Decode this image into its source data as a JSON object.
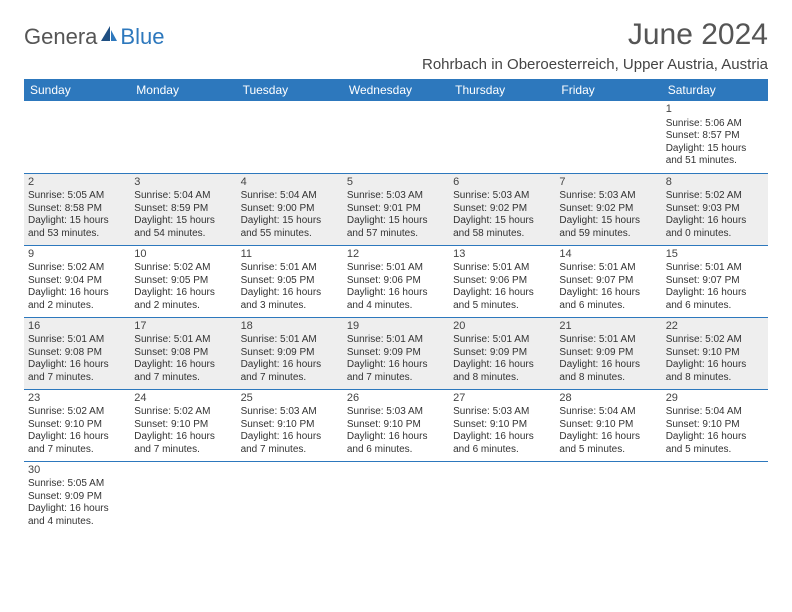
{
  "logo": {
    "part1": "Genera",
    "part2": "Blue"
  },
  "title": "June 2024",
  "subtitle": "Rohrbach in Oberoesterreich, Upper Austria, Austria",
  "colors": {
    "header_bg": "#2d78bd",
    "header_text": "#ffffff",
    "row_shade": "#eeeeee",
    "row_plain": "#ffffff",
    "border": "#2d78bd",
    "title_color": "#555555"
  },
  "day_headers": [
    "Sunday",
    "Monday",
    "Tuesday",
    "Wednesday",
    "Thursday",
    "Friday",
    "Saturday"
  ],
  "weeks": [
    [
      null,
      null,
      null,
      null,
      null,
      null,
      {
        "n": "1",
        "sunrise": "Sunrise: 5:06 AM",
        "sunset": "Sunset: 8:57 PM",
        "daylight": "Daylight: 15 hours and 51 minutes."
      }
    ],
    [
      {
        "n": "2",
        "sunrise": "Sunrise: 5:05 AM",
        "sunset": "Sunset: 8:58 PM",
        "daylight": "Daylight: 15 hours and 53 minutes."
      },
      {
        "n": "3",
        "sunrise": "Sunrise: 5:04 AM",
        "sunset": "Sunset: 8:59 PM",
        "daylight": "Daylight: 15 hours and 54 minutes."
      },
      {
        "n": "4",
        "sunrise": "Sunrise: 5:04 AM",
        "sunset": "Sunset: 9:00 PM",
        "daylight": "Daylight: 15 hours and 55 minutes."
      },
      {
        "n": "5",
        "sunrise": "Sunrise: 5:03 AM",
        "sunset": "Sunset: 9:01 PM",
        "daylight": "Daylight: 15 hours and 57 minutes."
      },
      {
        "n": "6",
        "sunrise": "Sunrise: 5:03 AM",
        "sunset": "Sunset: 9:02 PM",
        "daylight": "Daylight: 15 hours and 58 minutes."
      },
      {
        "n": "7",
        "sunrise": "Sunrise: 5:03 AM",
        "sunset": "Sunset: 9:02 PM",
        "daylight": "Daylight: 15 hours and 59 minutes."
      },
      {
        "n": "8",
        "sunrise": "Sunrise: 5:02 AM",
        "sunset": "Sunset: 9:03 PM",
        "daylight": "Daylight: 16 hours and 0 minutes."
      }
    ],
    [
      {
        "n": "9",
        "sunrise": "Sunrise: 5:02 AM",
        "sunset": "Sunset: 9:04 PM",
        "daylight": "Daylight: 16 hours and 2 minutes."
      },
      {
        "n": "10",
        "sunrise": "Sunrise: 5:02 AM",
        "sunset": "Sunset: 9:05 PM",
        "daylight": "Daylight: 16 hours and 2 minutes."
      },
      {
        "n": "11",
        "sunrise": "Sunrise: 5:01 AM",
        "sunset": "Sunset: 9:05 PM",
        "daylight": "Daylight: 16 hours and 3 minutes."
      },
      {
        "n": "12",
        "sunrise": "Sunrise: 5:01 AM",
        "sunset": "Sunset: 9:06 PM",
        "daylight": "Daylight: 16 hours and 4 minutes."
      },
      {
        "n": "13",
        "sunrise": "Sunrise: 5:01 AM",
        "sunset": "Sunset: 9:06 PM",
        "daylight": "Daylight: 16 hours and 5 minutes."
      },
      {
        "n": "14",
        "sunrise": "Sunrise: 5:01 AM",
        "sunset": "Sunset: 9:07 PM",
        "daylight": "Daylight: 16 hours and 6 minutes."
      },
      {
        "n": "15",
        "sunrise": "Sunrise: 5:01 AM",
        "sunset": "Sunset: 9:07 PM",
        "daylight": "Daylight: 16 hours and 6 minutes."
      }
    ],
    [
      {
        "n": "16",
        "sunrise": "Sunrise: 5:01 AM",
        "sunset": "Sunset: 9:08 PM",
        "daylight": "Daylight: 16 hours and 7 minutes."
      },
      {
        "n": "17",
        "sunrise": "Sunrise: 5:01 AM",
        "sunset": "Sunset: 9:08 PM",
        "daylight": "Daylight: 16 hours and 7 minutes."
      },
      {
        "n": "18",
        "sunrise": "Sunrise: 5:01 AM",
        "sunset": "Sunset: 9:09 PM",
        "daylight": "Daylight: 16 hours and 7 minutes."
      },
      {
        "n": "19",
        "sunrise": "Sunrise: 5:01 AM",
        "sunset": "Sunset: 9:09 PM",
        "daylight": "Daylight: 16 hours and 7 minutes."
      },
      {
        "n": "20",
        "sunrise": "Sunrise: 5:01 AM",
        "sunset": "Sunset: 9:09 PM",
        "daylight": "Daylight: 16 hours and 8 minutes."
      },
      {
        "n": "21",
        "sunrise": "Sunrise: 5:01 AM",
        "sunset": "Sunset: 9:09 PM",
        "daylight": "Daylight: 16 hours and 8 minutes."
      },
      {
        "n": "22",
        "sunrise": "Sunrise: 5:02 AM",
        "sunset": "Sunset: 9:10 PM",
        "daylight": "Daylight: 16 hours and 8 minutes."
      }
    ],
    [
      {
        "n": "23",
        "sunrise": "Sunrise: 5:02 AM",
        "sunset": "Sunset: 9:10 PM",
        "daylight": "Daylight: 16 hours and 7 minutes."
      },
      {
        "n": "24",
        "sunrise": "Sunrise: 5:02 AM",
        "sunset": "Sunset: 9:10 PM",
        "daylight": "Daylight: 16 hours and 7 minutes."
      },
      {
        "n": "25",
        "sunrise": "Sunrise: 5:03 AM",
        "sunset": "Sunset: 9:10 PM",
        "daylight": "Daylight: 16 hours and 7 minutes."
      },
      {
        "n": "26",
        "sunrise": "Sunrise: 5:03 AM",
        "sunset": "Sunset: 9:10 PM",
        "daylight": "Daylight: 16 hours and 6 minutes."
      },
      {
        "n": "27",
        "sunrise": "Sunrise: 5:03 AM",
        "sunset": "Sunset: 9:10 PM",
        "daylight": "Daylight: 16 hours and 6 minutes."
      },
      {
        "n": "28",
        "sunrise": "Sunrise: 5:04 AM",
        "sunset": "Sunset: 9:10 PM",
        "daylight": "Daylight: 16 hours and 5 minutes."
      },
      {
        "n": "29",
        "sunrise": "Sunrise: 5:04 AM",
        "sunset": "Sunset: 9:10 PM",
        "daylight": "Daylight: 16 hours and 5 minutes."
      }
    ],
    [
      {
        "n": "30",
        "sunrise": "Sunrise: 5:05 AM",
        "sunset": "Sunset: 9:09 PM",
        "daylight": "Daylight: 16 hours and 4 minutes."
      },
      null,
      null,
      null,
      null,
      null,
      null
    ]
  ]
}
